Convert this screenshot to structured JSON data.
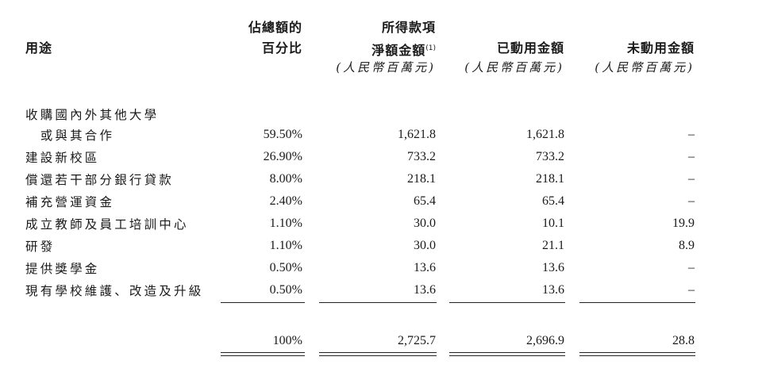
{
  "headers": {
    "use": "用途",
    "pct": [
      "佔總額的",
      "百分比"
    ],
    "net": [
      "所得款項",
      "淨額金額"
    ],
    "net_note": "(1)",
    "used": "已動用金額",
    "unused": "未動用金額",
    "unit": "(人民幣百萬元)"
  },
  "rows": [
    {
      "label": "收購國內外其他大學",
      "pct": "",
      "net": "",
      "used": "",
      "unused": ""
    },
    {
      "label": "　或與其合作",
      "pct": "59.50%",
      "net": "1,621.8",
      "used": "1,621.8",
      "unused": "–"
    },
    {
      "label": "建設新校區",
      "pct": "26.90%",
      "net": "733.2",
      "used": "733.2",
      "unused": "–"
    },
    {
      "label": "償還若干部分銀行貸款",
      "pct": "8.00%",
      "net": "218.1",
      "used": "218.1",
      "unused": "–"
    },
    {
      "label": "補充營運資金",
      "pct": "2.40%",
      "net": "65.4",
      "used": "65.4",
      "unused": "–"
    },
    {
      "label": "成立教師及員工培訓中心",
      "pct": "1.10%",
      "net": "30.0",
      "used": "10.1",
      "unused": "19.9"
    },
    {
      "label": "研發",
      "pct": "1.10%",
      "net": "30.0",
      "used": "21.1",
      "unused": "8.9"
    },
    {
      "label": "提供獎學金",
      "pct": "0.50%",
      "net": "13.6",
      "used": "13.6",
      "unused": "–"
    },
    {
      "label": "現有學校維護、改造及升級",
      "pct": "0.50%",
      "net": "13.6",
      "used": "13.6",
      "unused": "–"
    }
  ],
  "total": {
    "pct": "100%",
    "net": "2,725.7",
    "used": "2,696.9",
    "unused": "28.8"
  }
}
